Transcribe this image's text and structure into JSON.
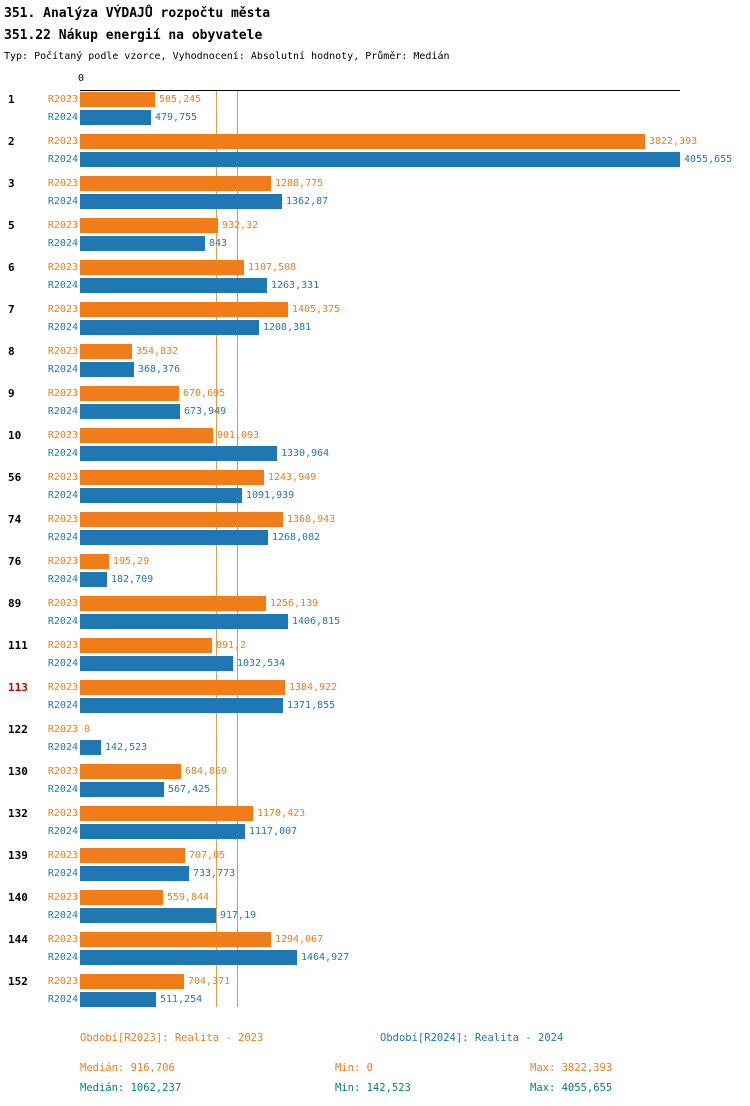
{
  "header": {
    "title": "351. Analýza VÝDAJŮ rozpočtu města",
    "subtitle": "351.22 Nákup energií na obyvatele",
    "meta": "Typ: Počítaný podle vzorce, Vyhodnocení: Absolutní hodnoty, Průměr: Medián"
  },
  "colors": {
    "r2023": "#f07d1a",
    "r2024": "#1f77b4",
    "highlight": "#cc0000",
    "axis": "#000000",
    "median_line_r2023": "#dfa04a",
    "median_line_r2024": "#8fa9c4",
    "stats_r2024_text": "#008080"
  },
  "chart_data": {
    "type": "bar",
    "orientation": "horizontal",
    "zero_label": "0",
    "axis_max": 4055.655,
    "categories": [
      "1",
      "2",
      "3",
      "5",
      "6",
      "7",
      "8",
      "9",
      "10",
      "56",
      "74",
      "76",
      "89",
      "111",
      "113",
      "122",
      "130",
      "132",
      "139",
      "140",
      "144",
      "152"
    ],
    "highlighted_categories": [
      "113"
    ],
    "series": [
      {
        "name": "R2023",
        "values": [
          505.245,
          3822.393,
          1288.775,
          932.32,
          1107.508,
          1405.375,
          354.832,
          670.695,
          901.093,
          1243.949,
          1368.943,
          195.29,
          1256.139,
          891.2,
          1384.922,
          0,
          684.869,
          1170.423,
          707.05,
          559.844,
          1294.067,
          704.371
        ],
        "labels": [
          "505,245",
          "3822,393",
          "1288,775",
          "932,32",
          "1107,508",
          "1405,375",
          "354,832",
          "670,695",
          "901,093",
          "1243,949",
          "1368,943",
          "195,29",
          "1256,139",
          "891,2",
          "1384,922",
          "0",
          "684,869",
          "1170,423",
          "707,05",
          "559,844",
          "1294,067",
          "704,371"
        ]
      },
      {
        "name": "R2024",
        "values": [
          479.755,
          4055.655,
          1362.87,
          843,
          1263.331,
          1208.381,
          368.376,
          673.949,
          1330.964,
          1091.939,
          1268.082,
          182.709,
          1406.815,
          1032.534,
          1371.855,
          142.523,
          567.425,
          1117.007,
          733.773,
          917.19,
          1464.927,
          511.254
        ],
        "labels": [
          "479,755",
          "4055,655",
          "1362,87",
          "843",
          "1263,331",
          "1208,381",
          "368,376",
          "673,949",
          "1330,964",
          "1091,939",
          "1268,082",
          "182,709",
          "1406,815",
          "1032,534",
          "1371,855",
          "142,523",
          "567,425",
          "1117,007",
          "733,773",
          "917,19",
          "1464,927",
          "511,254"
        ]
      }
    ],
    "medians": {
      "r2023": 916.706,
      "r2024": 1062.237
    },
    "legend_position": "bottom",
    "grid": "median-lines-only"
  },
  "footer": {
    "legend_r2023": "Období[R2023]: Realita - 2023",
    "legend_r2024": "Období[R2024]: Realita - 2024",
    "stats_r2023": {
      "median": "Medián: 916,706",
      "min": "Min: 0",
      "max": "Max: 3822,393"
    },
    "stats_r2024": {
      "median": "Medián: 1062,237",
      "min": "Min: 142,523",
      "max": "Max: 4055,655"
    }
  }
}
